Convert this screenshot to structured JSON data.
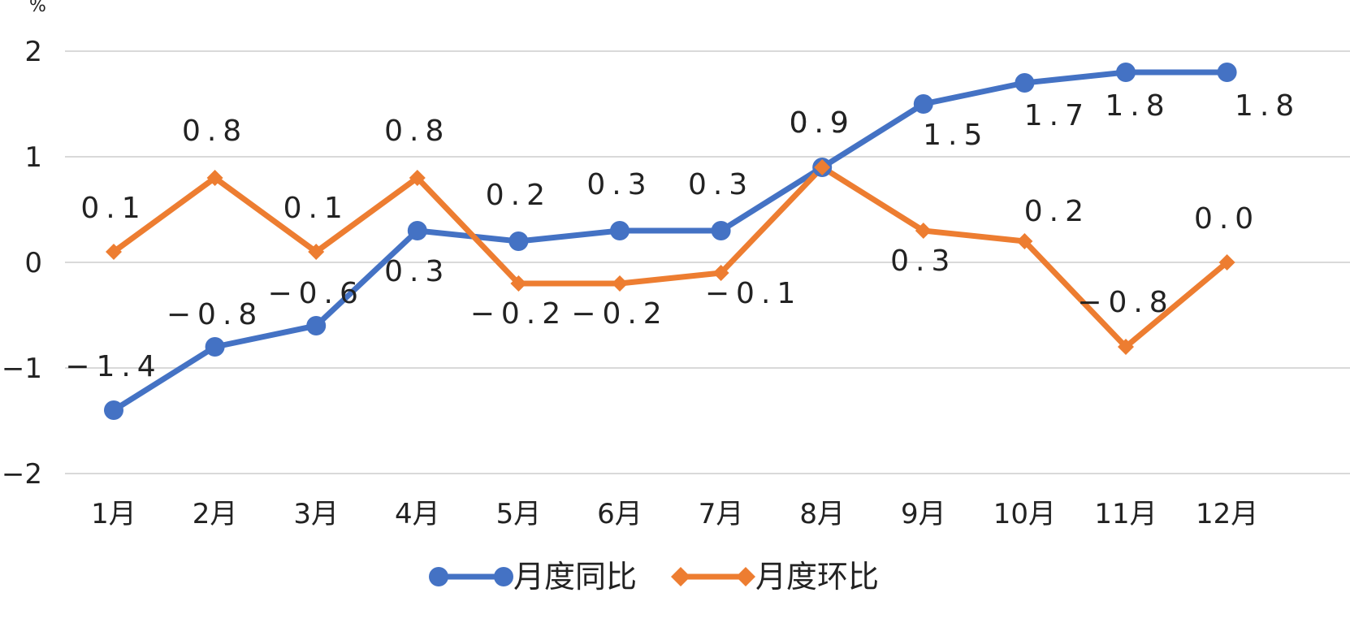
{
  "chart_data": {
    "type": "line",
    "unit_label": "%",
    "categories": [
      "1月",
      "2月",
      "3月",
      "4月",
      "5月",
      "6月",
      "7月",
      "8月",
      "9月",
      "10月",
      "11月",
      "12月"
    ],
    "ylim": [
      -2,
      2
    ],
    "yticks": [
      "2",
      "1",
      "0",
      "−1",
      "−2"
    ],
    "grid": true,
    "legend_position": "bottom",
    "series": [
      {
        "name": "月度同比",
        "color": "#4472C4",
        "marker": "circle",
        "values": [
          -1.4,
          -0.8,
          -0.6,
          0.3,
          0.2,
          0.3,
          0.3,
          0.9,
          1.5,
          1.7,
          1.8,
          1.8
        ],
        "labels": [
          "−1.4",
          "−0.8",
          "−0.6",
          "0.3",
          "0.2",
          "0.3",
          "0.3",
          "0.9",
          "1.5",
          "1.7",
          "1.8",
          "1.8"
        ]
      },
      {
        "name": "月度环比",
        "color": "#ED7D31",
        "marker": "diamond",
        "values": [
          0.1,
          0.8,
          0.1,
          0.8,
          -0.2,
          -0.2,
          -0.1,
          0.9,
          0.3,
          0.2,
          -0.8,
          0.0
        ],
        "labels": [
          "0.1",
          "0.8",
          "0.1",
          "0.8",
          "−0.2",
          "−0.2",
          "−0.1",
          "0.9",
          "0.3",
          "0.2",
          "−0.8",
          "0.0"
        ]
      }
    ]
  }
}
